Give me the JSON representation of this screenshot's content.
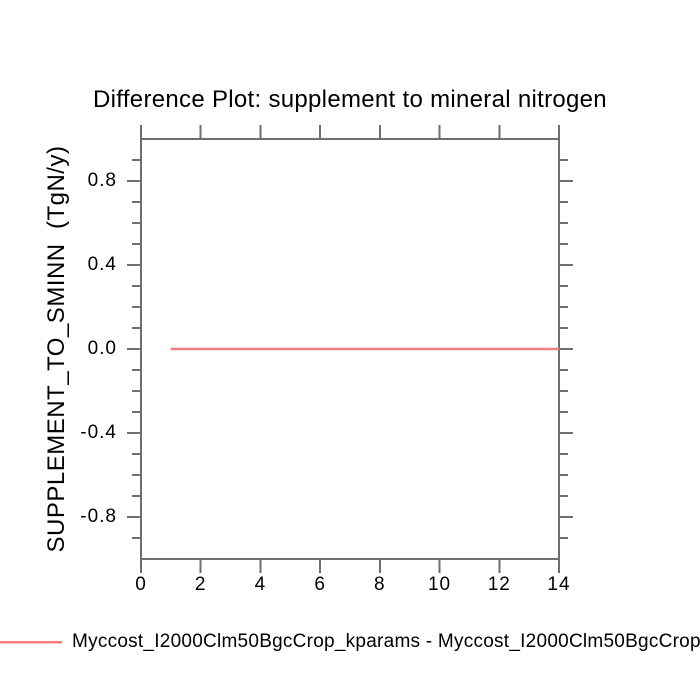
{
  "page": {
    "background": "#ffffff"
  },
  "colors": {
    "axis": "#6f6f6f",
    "text": "#000000",
    "series_red": "#f57d7d",
    "background": "#ffffff"
  },
  "chart_data": {
    "type": "line",
    "title": "Difference Plot: supplement to mineral nitrogen",
    "xlabel": "",
    "ylabel": "SUPPLEMENT_TO_SMINN  (TgN/y)",
    "xlim": [
      0,
      14
    ],
    "ylim": [
      -1.0,
      1.0
    ],
    "grid": false,
    "x_ticks": {
      "major": [
        0,
        2,
        4,
        6,
        8,
        10,
        12,
        14
      ],
      "labels": [
        "0",
        "2",
        "4",
        "6",
        "8",
        "10",
        "12",
        "14"
      ]
    },
    "y_ticks": {
      "major": [
        0.8,
        0.4,
        0.0,
        -0.4,
        -0.8
      ],
      "labels": [
        "0.8",
        "0.4",
        "0.0",
        "-0.4",
        "-0.8"
      ],
      "minor_step": 0.1
    },
    "legend_position": "bottom-left",
    "series": [
      {
        "name": "Myccost_I2000Clm50BgcCrop_kparams - Myccost_I2000Clm50BgcCrop_",
        "color": "#f57d7d",
        "x": [
          1,
          14
        ],
        "y": [
          0.0,
          0.0
        ]
      }
    ]
  },
  "legend": {
    "label": "Myccost_I2000Clm50BgcCrop_kparams - Myccost_I2000Clm50BgcCrop_"
  }
}
